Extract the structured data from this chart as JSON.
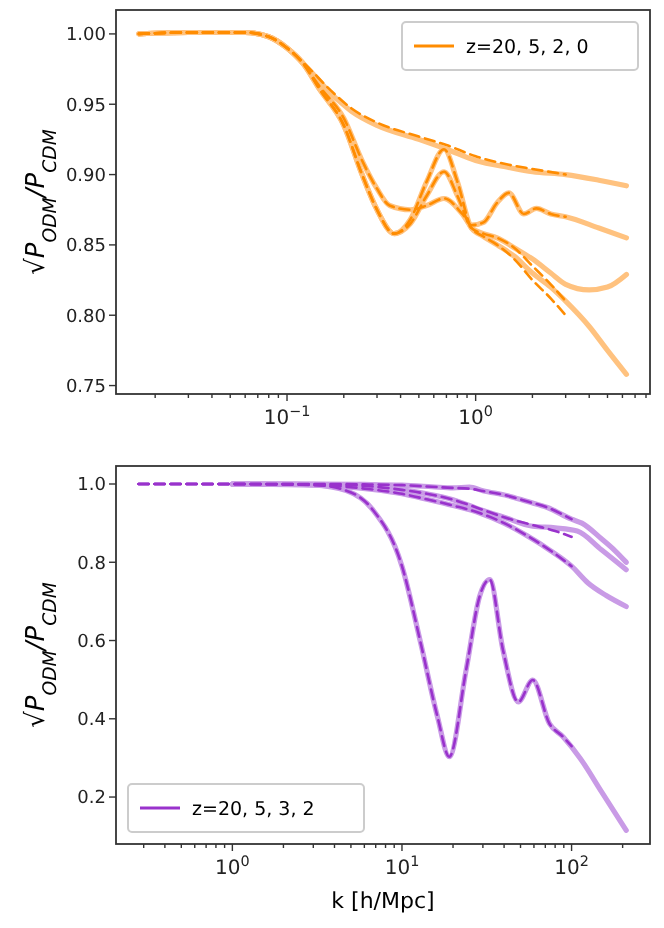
{
  "chart_data": [
    {
      "type": "line",
      "ylabel": "√P$_{ODM}$/P$_{CDM}$",
      "log": "x",
      "legend": "top right",
      "xlim": [
        0.0124,
        8.4
      ],
      "ylim": [
        0.744,
        1.017
      ],
      "xticks": [
        {
          "value": 0.02,
          "label": null
        },
        {
          "value": 0.03,
          "label": null
        },
        {
          "value": 0.04,
          "label": null
        },
        {
          "value": 0.05,
          "label": null
        },
        {
          "value": 0.06,
          "label": null
        },
        {
          "value": 0.07,
          "label": null
        },
        {
          "value": 0.08,
          "label": null
        },
        {
          "value": 0.09,
          "label": null
        },
        {
          "value": 0.1,
          "label": "10$^{−1}$"
        },
        {
          "value": 0.2,
          "label": null
        },
        {
          "value": 0.3,
          "label": null
        },
        {
          "value": 0.4,
          "label": null
        },
        {
          "value": 0.5,
          "label": null
        },
        {
          "value": 0.6,
          "label": null
        },
        {
          "value": 0.7,
          "label": null
        },
        {
          "value": 0.8,
          "label": null
        },
        {
          "value": 0.9,
          "label": null
        },
        {
          "value": 1,
          "label": "10$^{0}$"
        },
        {
          "value": 2,
          "label": null
        },
        {
          "value": 3,
          "label": null
        },
        {
          "value": 4,
          "label": null
        },
        {
          "value": 5,
          "label": null
        },
        {
          "value": 6,
          "label": null
        },
        {
          "value": 7,
          "label": null
        },
        {
          "value": 8,
          "label": null
        }
      ],
      "yticks": [
        0.75,
        {
          "value": 0.8,
          "label": "0.80"
        },
        0.85,
        {
          "value": 0.9,
          "label": "0.90"
        },
        0.95,
        {
          "value": 1,
          "label": "1.00"
        }
      ],
      "series": [
        {
          "color": "#ffc27f",
          "line_style": "solid",
          "x": [
            0.0164,
            0.03,
            0.06,
            0.08,
            0.1,
            0.13,
            0.17,
            0.22,
            0.3,
            0.5,
            0.7,
            1.0,
            1.5,
            2,
            3,
            4.5,
            6.3
          ],
          "values": [
            1.0,
            1.001,
            1.001,
            0.998,
            0.99,
            0.975,
            0.958,
            0.945,
            0.935,
            0.925,
            0.918,
            0.91,
            0.905,
            0.902,
            0.9,
            0.896,
            0.892
          ]
        },
        {
          "color": "#ffc27f",
          "line_style": "solid",
          "x": [
            0.0164,
            0.03,
            0.06,
            0.08,
            0.1,
            0.12,
            0.15,
            0.2,
            0.25,
            0.3,
            0.35,
            0.45,
            0.55,
            0.68,
            0.85,
            0.95,
            1.1,
            1.3,
            1.5,
            1.8,
            2.1,
            2.5,
            3,
            4.5,
            6.3
          ],
          "values": [
            1.0,
            1.001,
            1.001,
            0.998,
            0.99,
            0.98,
            0.962,
            0.94,
            0.91,
            0.89,
            0.878,
            0.875,
            0.878,
            0.883,
            0.872,
            0.864,
            0.866,
            0.88,
            0.887,
            0.872,
            0.876,
            0.872,
            0.87,
            0.862,
            0.855
          ]
        },
        {
          "color": "#ffc27f",
          "line_style": "solid",
          "x": [
            0.0164,
            0.03,
            0.06,
            0.08,
            0.1,
            0.12,
            0.15,
            0.2,
            0.25,
            0.3,
            0.37,
            0.45,
            0.55,
            0.68,
            0.8,
            0.95,
            1.1,
            1.3,
            1.6,
            2,
            2.5,
            3,
            4,
            5,
            6.3
          ],
          "values": [
            1.0,
            1.001,
            1.001,
            0.998,
            0.99,
            0.98,
            0.96,
            0.935,
            0.9,
            0.875,
            0.858,
            0.865,
            0.885,
            0.902,
            0.885,
            0.862,
            0.858,
            0.855,
            0.848,
            0.84,
            0.83,
            0.822,
            0.818,
            0.82,
            0.829
          ]
        },
        {
          "color": "#ffc27f",
          "line_style": "solid",
          "x": [
            0.0164,
            0.03,
            0.06,
            0.08,
            0.1,
            0.12,
            0.15,
            0.2,
            0.25,
            0.3,
            0.37,
            0.45,
            0.55,
            0.68,
            0.8,
            0.95,
            1.1,
            1.3,
            1.6,
            2,
            2.5,
            3,
            4,
            5,
            6.3
          ],
          "values": [
            1.0,
            1.001,
            1.001,
            0.998,
            0.99,
            0.98,
            0.96,
            0.935,
            0.9,
            0.875,
            0.858,
            0.868,
            0.895,
            0.918,
            0.895,
            0.862,
            0.856,
            0.85,
            0.842,
            0.83,
            0.82,
            0.81,
            0.792,
            0.775,
            0.758
          ]
        },
        {
          "name": "z=20, 5, 2, 0",
          "color": "#ff8c00",
          "line_style": "dashed",
          "x": [
            0.0164,
            0.03,
            0.06,
            0.08,
            0.1,
            0.13,
            0.17,
            0.22,
            0.3,
            0.5,
            0.7,
            1.0,
            1.5,
            2,
            3
          ],
          "values": [
            1.0,
            1.001,
            1.001,
            0.998,
            0.99,
            0.976,
            0.96,
            0.947,
            0.937,
            0.927,
            0.921,
            0.913,
            0.907,
            0.904,
            0.9
          ]
        },
        {
          "color": "#ff8c00",
          "line_style": "dashed",
          "x": [
            0.0164,
            0.03,
            0.06,
            0.08,
            0.1,
            0.12,
            0.15,
            0.2,
            0.25,
            0.3,
            0.35,
            0.45,
            0.55,
            0.68,
            0.85,
            0.95,
            1.1,
            1.3,
            1.5,
            1.8,
            2.1,
            2.5,
            3
          ],
          "values": [
            1.0,
            1.001,
            1.001,
            0.998,
            0.99,
            0.98,
            0.962,
            0.94,
            0.91,
            0.89,
            0.878,
            0.875,
            0.878,
            0.883,
            0.872,
            0.864,
            0.866,
            0.88,
            0.887,
            0.872,
            0.876,
            0.872,
            0.87
          ]
        },
        {
          "color": "#ff8c00",
          "line_style": "dashed",
          "x": [
            0.0164,
            0.03,
            0.06,
            0.08,
            0.1,
            0.12,
            0.15,
            0.2,
            0.25,
            0.3,
            0.37,
            0.45,
            0.55,
            0.68,
            0.8,
            0.95,
            1.1,
            1.3,
            1.6,
            2,
            2.5,
            3
          ],
          "values": [
            1.0,
            1.001,
            1.001,
            0.998,
            0.99,
            0.98,
            0.96,
            0.935,
            0.9,
            0.875,
            0.858,
            0.865,
            0.885,
            0.902,
            0.885,
            0.862,
            0.858,
            0.855,
            0.848,
            0.835,
            0.822,
            0.81
          ]
        },
        {
          "color": "#ff8c00",
          "line_style": "dashed",
          "x": [
            0.0164,
            0.03,
            0.06,
            0.08,
            0.1,
            0.12,
            0.15,
            0.2,
            0.25,
            0.3,
            0.37,
            0.45,
            0.55,
            0.68,
            0.8,
            0.95,
            1.1,
            1.3,
            1.6,
            2,
            2.5,
            3
          ],
          "values": [
            1.0,
            1.001,
            1.001,
            0.998,
            0.99,
            0.98,
            0.96,
            0.935,
            0.9,
            0.875,
            0.858,
            0.868,
            0.895,
            0.918,
            0.895,
            0.862,
            0.856,
            0.85,
            0.84,
            0.825,
            0.812,
            0.8
          ]
        }
      ]
    },
    {
      "type": "line",
      "xlabel": "k [h/Mpc]",
      "ylabel": "√P$_{ODM}$/P$_{CDM}$",
      "log": "x",
      "legend": "bottom left",
      "xlim": [
        0.206,
        290
      ],
      "ylim": [
        0.08,
        1.046
      ],
      "xticks": [
        {
          "value": 0.3,
          "label": null
        },
        {
          "value": 0.4,
          "label": null
        },
        {
          "value": 0.5,
          "label": null
        },
        {
          "value": 0.6,
          "label": null
        },
        {
          "value": 0.7,
          "label": null
        },
        {
          "value": 0.8,
          "label": null
        },
        {
          "value": 0.9,
          "label": null
        },
        {
          "value": 1,
          "label": "10$^{0}$"
        },
        {
          "value": 2,
          "label": null
        },
        {
          "value": 3,
          "label": null
        },
        {
          "value": 4,
          "label": null
        },
        {
          "value": 5,
          "label": null
        },
        {
          "value": 6,
          "label": null
        },
        {
          "value": 7,
          "label": null
        },
        {
          "value": 8,
          "label": null
        },
        {
          "value": 9,
          "label": null
        },
        {
          "value": 10,
          "label": "10$^{1}$"
        },
        {
          "value": 20,
          "label": null
        },
        {
          "value": 30,
          "label": null
        },
        {
          "value": 40,
          "label": null
        },
        {
          "value": 50,
          "label": null
        },
        {
          "value": 60,
          "label": null
        },
        {
          "value": 70,
          "label": null
        },
        {
          "value": 80,
          "label": null
        },
        {
          "value": 90,
          "label": null
        },
        {
          "value": 100,
          "label": "10$^{2}$"
        },
        {
          "value": 200,
          "label": null
        }
      ],
      "yticks": [
        0.2,
        0.4,
        0.6,
        0.8,
        {
          "value": 1,
          "label": "1.0"
        }
      ],
      "series": [
        {
          "color": "#c99be6",
          "line_style": "solid",
          "x": [
            1,
            2,
            3,
            4.7,
            6.7,
            10,
            12.9,
            16.2,
            19,
            23.9,
            28.7,
            32.9,
            39.4,
            48.5,
            59,
            74,
            89,
            112,
            150,
            210
          ],
          "values": [
            1.0,
            1.0,
            0.998,
            0.983,
            0.935,
            0.79,
            0.593,
            0.405,
            0.303,
            0.525,
            0.713,
            0.756,
            0.576,
            0.443,
            0.499,
            0.388,
            0.354,
            0.3,
            0.214,
            0.115
          ]
        },
        {
          "color": "#c99be6",
          "line_style": "solid",
          "x": [
            1,
            3,
            6,
            10,
            15,
            20,
            25,
            30,
            42,
            55,
            72,
            100,
            115,
            150,
            180,
            210
          ],
          "values": [
            1.0,
            1.0,
            0.999,
            0.997,
            0.993,
            0.99,
            0.992,
            0.983,
            0.97,
            0.955,
            0.94,
            0.91,
            0.9,
            0.86,
            0.83,
            0.8
          ]
        },
        {
          "color": "#c99be6",
          "line_style": "solid",
          "x": [
            1,
            3,
            6,
            10,
            14,
            20,
            28.7,
            40,
            59,
            80,
            108,
            150,
            210
          ],
          "values": [
            1.0,
            0.999,
            0.995,
            0.985,
            0.975,
            0.96,
            0.935,
            0.915,
            0.892,
            0.888,
            0.88,
            0.832,
            0.781
          ]
        },
        {
          "color": "#c99be6",
          "line_style": "solid",
          "x": [
            1,
            3,
            6.7,
            10,
            14,
            20,
            28.7,
            40,
            55,
            75,
            100,
            125,
            160,
            210
          ],
          "values": [
            1.0,
            0.997,
            0.986,
            0.975,
            0.961,
            0.945,
            0.926,
            0.9,
            0.867,
            0.83,
            0.79,
            0.747,
            0.715,
            0.687
          ]
        },
        {
          "name": "z=20, 5, 3, 2",
          "color": "#9932cc",
          "line_style": "dashed",
          "x": [
            0.28,
            0.5,
            1,
            2,
            3,
            4.7,
            6.7,
            10,
            12.9,
            16.2,
            19,
            23.9,
            28.7,
            32.9,
            39.4,
            48.5,
            59,
            74,
            89,
            100
          ],
          "values": [
            1.0,
            1.0,
            1.0,
            1.0,
            0.998,
            0.983,
            0.935,
            0.79,
            0.593,
            0.405,
            0.303,
            0.525,
            0.713,
            0.756,
            0.576,
            0.443,
            0.499,
            0.388,
            0.354,
            0.33
          ]
        },
        {
          "color": "#9932cc",
          "line_style": "dashed",
          "x": [
            0.28,
            3,
            6,
            10,
            15,
            20,
            25,
            30,
            42,
            55,
            72,
            100
          ],
          "values": [
            1.0,
            1.0,
            0.999,
            0.997,
            0.993,
            0.99,
            0.988,
            0.982,
            0.97,
            0.955,
            0.94,
            0.91
          ]
        },
        {
          "color": "#9932cc",
          "line_style": "dashed",
          "x": [
            0.28,
            3,
            6,
            10,
            14,
            20,
            28.7,
            40,
            59,
            80,
            100
          ],
          "values": [
            1.0,
            0.999,
            0.995,
            0.985,
            0.975,
            0.96,
            0.937,
            0.915,
            0.895,
            0.88,
            0.865
          ]
        },
        {
          "color": "#9932cc",
          "line_style": "dashed",
          "x": [
            0.28,
            1,
            3,
            6.7,
            10,
            14,
            20,
            28.7,
            40,
            55,
            75,
            100
          ],
          "values": [
            1.0,
            1.0,
            0.997,
            0.986,
            0.975,
            0.961,
            0.945,
            0.926,
            0.9,
            0.867,
            0.83,
            0.79
          ]
        }
      ]
    }
  ]
}
